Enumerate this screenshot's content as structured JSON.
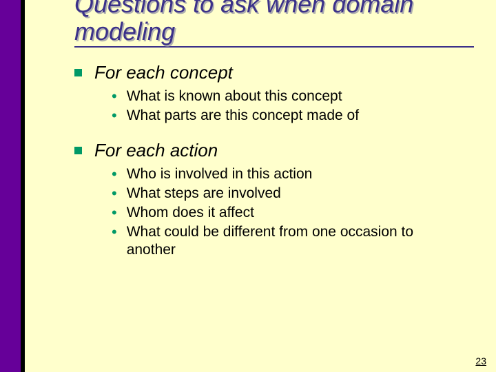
{
  "colors": {
    "background": "#ffffcc",
    "sidebar": "#660099",
    "sidebar_shadow": "#000000",
    "title": "#3b3189",
    "title_shadow": "#b0b0b0",
    "bullet": "#009966",
    "text": "#000000"
  },
  "title": "Questions to ask when domain modeling",
  "sections": [
    {
      "heading": "For each concept",
      "items": [
        "What is known about this concept",
        "What parts are this concept made of"
      ]
    },
    {
      "heading": "For each action",
      "items": [
        "Who is involved in this action",
        "What steps are involved",
        "Whom does it affect",
        "What could be different from one occasion to another"
      ]
    }
  ],
  "page_number": "23",
  "typography": {
    "title_fontsize": 36,
    "title_style": "italic",
    "l1_fontsize": 26,
    "l1_style": "italic",
    "l2_fontsize": 21
  }
}
